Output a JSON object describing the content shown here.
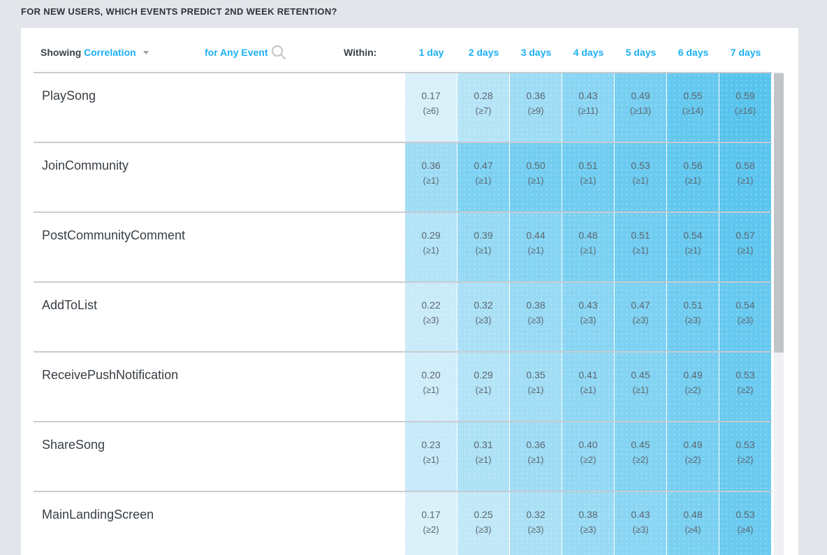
{
  "page": {
    "title": "FOR NEW USERS, WHICH EVENTS PREDICT 2ND WEEK RETENTION?"
  },
  "controls": {
    "showing_label": "Showing",
    "metric_value": "Correlation",
    "event_filter_label": "for Any Event",
    "within_label": "Within:",
    "search_icon": "search-icon",
    "dropdown_icon": "chevron-down-icon"
  },
  "columns": [
    "1 day",
    "2 days",
    "3 days",
    "4 days",
    "5 days",
    "6 days",
    "7 days"
  ],
  "colors": {
    "accent_blue": "#1cb0f2",
    "heat_low_color": "#def2fb",
    "heat_high_color": "#55c3ee",
    "heat_low_value": 0.15,
    "heat_high_value": 0.6,
    "separator": "#c9ccd0",
    "page_bg": "#e2e5e9",
    "cell_text": "#5c666e",
    "scroll_thumb": "#c1c4c7",
    "scroll_track": "#f0f1f3"
  },
  "rows": [
    {
      "event": "PlaySong",
      "cells": [
        {
          "value": "0.17",
          "threshold": "(≥6)"
        },
        {
          "value": "0.28",
          "threshold": "(≥7)"
        },
        {
          "value": "0.36",
          "threshold": "(≥9)"
        },
        {
          "value": "0.43",
          "threshold": "(≥11)"
        },
        {
          "value": "0.49",
          "threshold": "(≥13)"
        },
        {
          "value": "0.55",
          "threshold": "(≥14)"
        },
        {
          "value": "0.59",
          "threshold": "(≥16)"
        }
      ]
    },
    {
      "event": "JoinCommunity",
      "cells": [
        {
          "value": "0.36",
          "threshold": "(≥1)"
        },
        {
          "value": "0.47",
          "threshold": "(≥1)"
        },
        {
          "value": "0.50",
          "threshold": "(≥1)"
        },
        {
          "value": "0.51",
          "threshold": "(≥1)"
        },
        {
          "value": "0.53",
          "threshold": "(≥1)"
        },
        {
          "value": "0.56",
          "threshold": "(≥1)"
        },
        {
          "value": "0.58",
          "threshold": "(≥1)"
        }
      ]
    },
    {
      "event": "PostCommunityComment",
      "cells": [
        {
          "value": "0.29",
          "threshold": "(≥1)"
        },
        {
          "value": "0.39",
          "threshold": "(≥1)"
        },
        {
          "value": "0.44",
          "threshold": "(≥1)"
        },
        {
          "value": "0.48",
          "threshold": "(≥1)"
        },
        {
          "value": "0.51",
          "threshold": "(≥1)"
        },
        {
          "value": "0.54",
          "threshold": "(≥1)"
        },
        {
          "value": "0.57",
          "threshold": "(≥1)"
        }
      ]
    },
    {
      "event": "AddToList",
      "cells": [
        {
          "value": "0.22",
          "threshold": "(≥3)"
        },
        {
          "value": "0.32",
          "threshold": "(≥3)"
        },
        {
          "value": "0.38",
          "threshold": "(≥3)"
        },
        {
          "value": "0.43",
          "threshold": "(≥3)"
        },
        {
          "value": "0.47",
          "threshold": "(≥3)"
        },
        {
          "value": "0.51",
          "threshold": "(≥3)"
        },
        {
          "value": "0.54",
          "threshold": "(≥3)"
        }
      ]
    },
    {
      "event": "ReceivePushNotification",
      "cells": [
        {
          "value": "0.20",
          "threshold": "(≥1)"
        },
        {
          "value": "0.29",
          "threshold": "(≥1)"
        },
        {
          "value": "0.35",
          "threshold": "(≥1)"
        },
        {
          "value": "0.41",
          "threshold": "(≥1)"
        },
        {
          "value": "0.45",
          "threshold": "(≥1)"
        },
        {
          "value": "0.49",
          "threshold": "(≥2)"
        },
        {
          "value": "0.53",
          "threshold": "(≥2)"
        }
      ]
    },
    {
      "event": "ShareSong",
      "cells": [
        {
          "value": "0.23",
          "threshold": "(≥1)"
        },
        {
          "value": "0.31",
          "threshold": "(≥1)"
        },
        {
          "value": "0.36",
          "threshold": "(≥1)"
        },
        {
          "value": "0.40",
          "threshold": "(≥2)"
        },
        {
          "value": "0.45",
          "threshold": "(≥2)"
        },
        {
          "value": "0.49",
          "threshold": "(≥2)"
        },
        {
          "value": "0.53",
          "threshold": "(≥2)"
        }
      ]
    },
    {
      "event": "MainLandingScreen",
      "cells": [
        {
          "value": "0.17",
          "threshold": "(≥2)"
        },
        {
          "value": "0.25",
          "threshold": "(≥3)"
        },
        {
          "value": "0.32",
          "threshold": "(≥3)"
        },
        {
          "value": "0.38",
          "threshold": "(≥3)"
        },
        {
          "value": "0.43",
          "threshold": "(≥3)"
        },
        {
          "value": "0.48",
          "threshold": "(≥4)"
        },
        {
          "value": "0.53",
          "threshold": "(≥4)"
        }
      ]
    }
  ],
  "chart_data": {
    "type": "heatmap",
    "title": "FOR NEW USERS, WHICH EVENTS PREDICT 2ND WEEK RETENTION?",
    "metric": "Correlation",
    "x_categories": [
      "1 day",
      "2 days",
      "3 days",
      "4 days",
      "5 days",
      "6 days",
      "7 days"
    ],
    "y_categories": [
      "PlaySong",
      "JoinCommunity",
      "PostCommunityComment",
      "AddToList",
      "ReceivePushNotification",
      "ShareSong",
      "MainLandingScreen"
    ],
    "series": [
      {
        "name": "PlaySong",
        "values": [
          0.17,
          0.28,
          0.36,
          0.43,
          0.49,
          0.55,
          0.59
        ],
        "thresholds": [
          6,
          7,
          9,
          11,
          13,
          14,
          16
        ]
      },
      {
        "name": "JoinCommunity",
        "values": [
          0.36,
          0.47,
          0.5,
          0.51,
          0.53,
          0.56,
          0.58
        ],
        "thresholds": [
          1,
          1,
          1,
          1,
          1,
          1,
          1
        ]
      },
      {
        "name": "PostCommunityComment",
        "values": [
          0.29,
          0.39,
          0.44,
          0.48,
          0.51,
          0.54,
          0.57
        ],
        "thresholds": [
          1,
          1,
          1,
          1,
          1,
          1,
          1
        ]
      },
      {
        "name": "AddToList",
        "values": [
          0.22,
          0.32,
          0.38,
          0.43,
          0.47,
          0.51,
          0.54
        ],
        "thresholds": [
          3,
          3,
          3,
          3,
          3,
          3,
          3
        ]
      },
      {
        "name": "ReceivePushNotification",
        "values": [
          0.2,
          0.29,
          0.35,
          0.41,
          0.45,
          0.49,
          0.53
        ],
        "thresholds": [
          1,
          1,
          1,
          1,
          1,
          2,
          2
        ]
      },
      {
        "name": "ShareSong",
        "values": [
          0.23,
          0.31,
          0.36,
          0.4,
          0.45,
          0.49,
          0.53
        ],
        "thresholds": [
          1,
          1,
          1,
          2,
          2,
          2,
          2
        ]
      },
      {
        "name": "MainLandingScreen",
        "values": [
          0.17,
          0.25,
          0.32,
          0.38,
          0.43,
          0.48,
          0.53
        ],
        "thresholds": [
          2,
          3,
          3,
          3,
          3,
          4,
          4
        ]
      }
    ],
    "colorscale": {
      "low": "#def2fb",
      "high": "#55c3ee",
      "low_value": 0.15,
      "high_value": 0.6
    },
    "legend": "none"
  }
}
